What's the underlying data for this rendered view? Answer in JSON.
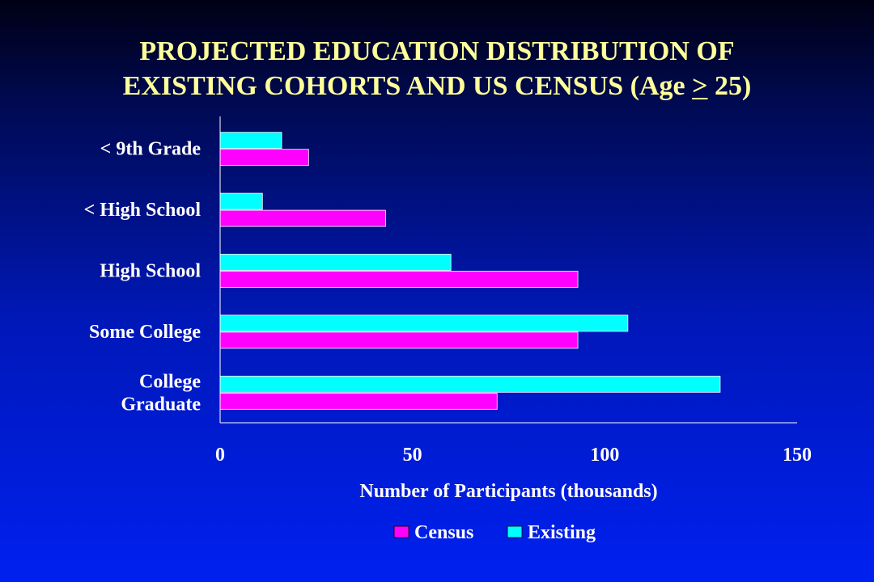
{
  "slide": {
    "title_line1": "PROJECTED EDUCATION DISTRIBUTION OF",
    "title_line2_before": "EXISTING COHORTS AND US CENSUS (Age ",
    "title_line2_symbol": ">",
    "title_line2_after": " 25)"
  },
  "colors": {
    "title": "#ffff99",
    "census": "#ff00ff",
    "existing": "#00ffff",
    "axis": "#ffffff",
    "label": "#ffffff"
  },
  "chart_data": {
    "type": "bar",
    "orientation": "horizontal",
    "title": "",
    "xlabel": "Number of Participants (thousands)",
    "ylabel": "",
    "xlim": [
      0,
      150
    ],
    "xticks": [
      0,
      50,
      100,
      150
    ],
    "grid": false,
    "legend_position": "bottom",
    "categories": [
      [
        "< 9th Grade"
      ],
      [
        "< High School"
      ],
      [
        "High School"
      ],
      [
        "Some College"
      ],
      [
        "College",
        "Graduate"
      ]
    ],
    "series": [
      {
        "name": "Census",
        "color": "#ff00ff",
        "values": [
          23,
          43,
          93,
          93,
          72
        ]
      },
      {
        "name": "Existing",
        "color": "#00ffff",
        "values": [
          16,
          11,
          60,
          106,
          130
        ]
      }
    ]
  }
}
